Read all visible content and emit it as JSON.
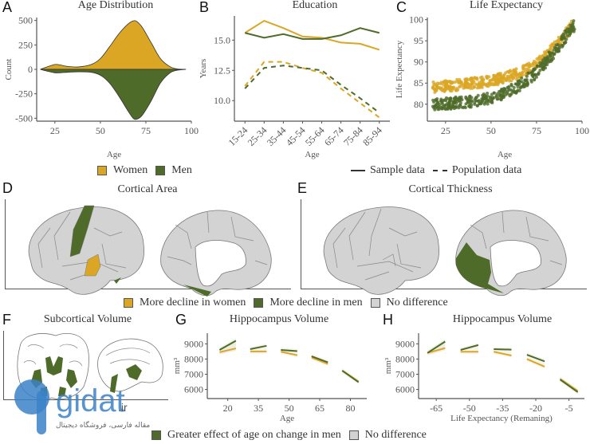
{
  "colors": {
    "women": "#dba623",
    "men": "#4f6b2a",
    "nodiff": "#d3d3d3",
    "axis": "#555555"
  },
  "panels": {
    "A": {
      "letter": "A",
      "title": "Age Distribution"
    },
    "B": {
      "letter": "B",
      "title": "Education"
    },
    "C": {
      "letter": "C",
      "title": "Life Expectancy"
    },
    "D": {
      "letter": "D",
      "title": "Cortical Area"
    },
    "E": {
      "letter": "E",
      "title": "Cortical Thickness"
    },
    "F": {
      "letter": "F",
      "title": "Subcortical Volume"
    },
    "G": {
      "letter": "G",
      "title": "Hippocampus Volume"
    },
    "H": {
      "letter": "H",
      "title": "Hippocampus Volume"
    }
  },
  "legends": {
    "sex": {
      "women": "Women",
      "men": "Men"
    },
    "data_source": {
      "sample": "Sample data",
      "population": "Population data"
    },
    "cortical": {
      "women": "More decline in women",
      "men": "More decline in men",
      "nodiff": "No difference"
    },
    "hippo": {
      "men": "Greater effect of age on change in men",
      "nodiff": "No difference"
    }
  },
  "watermark": {
    "brand": "gidat",
    "tld": ".ir",
    "tagline": "مقاله فارسی، فروشگاه دیجیتال"
  },
  "chart_data": [
    {
      "id": "A",
      "type": "area",
      "title": "Age Distribution",
      "xlabel": "Age",
      "ylabel": "Count",
      "xlim": [
        15,
        100
      ],
      "ylim": [
        -530,
        530
      ],
      "xticks": [
        25,
        50,
        75,
        100
      ],
      "yticks": [
        500,
        250,
        0,
        -250,
        -500
      ],
      "x": [
        17,
        20,
        25,
        28,
        32,
        38,
        45,
        50,
        55,
        60,
        65,
        68,
        70,
        73,
        78,
        83,
        88,
        92,
        97
      ],
      "series": [
        {
          "name": "Women",
          "values": [
            0,
            20,
            50,
            45,
            30,
            25,
            50,
            110,
            230,
            360,
            460,
            495,
            490,
            430,
            270,
            110,
            30,
            5,
            0
          ]
        },
        {
          "name": "Men",
          "values": [
            0,
            -15,
            -35,
            -35,
            -30,
            -25,
            -30,
            -60,
            -140,
            -270,
            -420,
            -500,
            -510,
            -470,
            -320,
            -140,
            -40,
            -10,
            0
          ]
        }
      ]
    },
    {
      "id": "B",
      "type": "line",
      "title": "Education",
      "xlabel": "Age",
      "ylabel": "Years",
      "ylim": [
        8.3,
        17.0
      ],
      "yticks": [
        10.0,
        12.5,
        15.0
      ],
      "categories": [
        "15-24",
        "25-34",
        "35-44",
        "45-54",
        "55-64",
        "65-74",
        "75-84",
        "85-94"
      ],
      "series": [
        {
          "name": "Women (Sample data)",
          "style": "solid",
          "values": [
            15.6,
            16.6,
            16.0,
            15.3,
            15.2,
            14.8,
            14.7,
            14.2
          ]
        },
        {
          "name": "Men (Sample data)",
          "style": "solid",
          "values": [
            15.6,
            15.2,
            15.5,
            15.1,
            15.1,
            15.4,
            16.0,
            15.6
          ]
        },
        {
          "name": "Women (Population data)",
          "style": "dashed",
          "values": [
            11.2,
            13.2,
            13.2,
            12.7,
            12.3,
            11.0,
            9.8,
            8.6
          ]
        },
        {
          "name": "Men (Population data)",
          "style": "dashed",
          "values": [
            11.0,
            12.7,
            12.9,
            12.7,
            12.5,
            11.3,
            10.2,
            9.0
          ]
        }
      ]
    },
    {
      "id": "C",
      "type": "scatter",
      "title": "Life Expectancy",
      "xlabel": "Age",
      "ylabel": "Life Expectancy",
      "xlim": [
        15,
        100
      ],
      "ylim": [
        76,
        100.5
      ],
      "xticks": [
        25,
        50,
        75,
        100
      ],
      "yticks": [
        80,
        85,
        90,
        95,
        100
      ],
      "series": [
        {
          "name": "Women",
          "trend": [
            [
              18,
              84.0
            ],
            [
              30,
              84.5
            ],
            [
              45,
              85.2
            ],
            [
              55,
              86.0
            ],
            [
              65,
              87.3
            ],
            [
              75,
              89.5
            ],
            [
              85,
              93.5
            ],
            [
              95,
              98.8
            ]
          ],
          "spread": 1.3
        },
        {
          "name": "Men",
          "trend": [
            [
              18,
              80.0
            ],
            [
              30,
              80.3
            ],
            [
              45,
              81.0
            ],
            [
              55,
              82.3
            ],
            [
              65,
              84.2
            ],
            [
              75,
              87.5
            ],
            [
              85,
              92.5
            ],
            [
              95,
              98.5
            ]
          ],
          "spread": 1.4
        }
      ]
    },
    {
      "id": "G",
      "type": "line",
      "title": "Hippocampus Volume",
      "xlabel": "Age",
      "ylabel": "mm³",
      "xlim": [
        10,
        88
      ],
      "ylim": [
        5400,
        9700
      ],
      "xticks": [
        20,
        35,
        50,
        65,
        80
      ],
      "yticks": [
        6000,
        7000,
        8000,
        9000
      ],
      "segments": [
        {
          "x": [
            16,
            24
          ],
          "women": [
            8450,
            8700
          ],
          "men": [
            8600,
            9200
          ]
        },
        {
          "x": [
            31,
            39
          ],
          "women": [
            8500,
            8500
          ],
          "men": [
            8650,
            8870
          ]
        },
        {
          "x": [
            46,
            54
          ],
          "women": [
            8480,
            8250
          ],
          "men": [
            8600,
            8520
          ]
        },
        {
          "x": [
            61,
            69
          ],
          "women": [
            8100,
            7680
          ],
          "men": [
            8180,
            7780
          ]
        },
        {
          "x": [
            76,
            84
          ],
          "women": [
            7250,
            6520
          ],
          "men": [
            7230,
            6480
          ]
        }
      ]
    },
    {
      "id": "H",
      "type": "line",
      "title": "Hippocampus Volume",
      "xlabel": "Life Expectancy (Remaning)",
      "ylabel": "mm³",
      "xlim": [
        -73,
        2
      ],
      "ylim": [
        5400,
        9700
      ],
      "xticks": [
        -65,
        -50,
        -35,
        -20,
        -5
      ],
      "yticks": [
        6000,
        7000,
        8000,
        9000
      ],
      "segments": [
        {
          "x": [
            -69,
            -61
          ],
          "women": [
            8400,
            8720
          ],
          "men": [
            8400,
            9150
          ]
        },
        {
          "x": [
            -54,
            -46
          ],
          "women": [
            8480,
            8480
          ],
          "men": [
            8600,
            8920
          ]
        },
        {
          "x": [
            -39,
            -31
          ],
          "women": [
            8480,
            8230
          ],
          "men": [
            8650,
            8620
          ]
        },
        {
          "x": [
            -24,
            -16
          ],
          "women": [
            8000,
            7500
          ],
          "men": [
            8280,
            7850
          ]
        },
        {
          "x": [
            -9,
            -1
          ],
          "women": [
            6700,
            5900
          ],
          "men": [
            6650,
            5820
          ]
        }
      ]
    }
  ]
}
